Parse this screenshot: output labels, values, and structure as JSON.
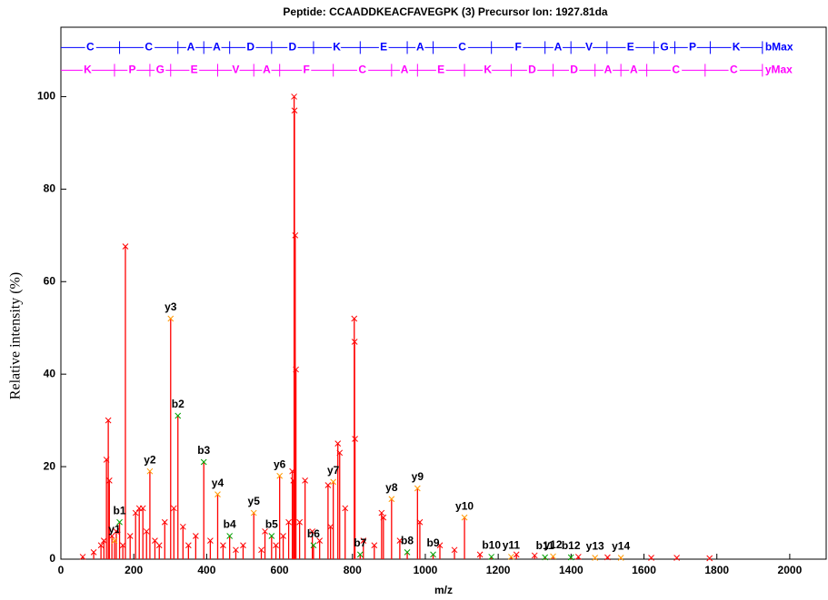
{
  "chart_data": {
    "type": "stem",
    "title": "Peptide: CCAADDKEACFAVEGPK (3)  Precursor Ion: 1927.81da",
    "x_label": "m/z",
    "y_label": "Relative intensity (%)",
    "xlim": [
      0,
      2100
    ],
    "ylim": [
      0,
      115
    ],
    "xticks": [
      0,
      200,
      400,
      600,
      800,
      1000,
      1200,
      1400,
      1600,
      1800,
      2000
    ],
    "yticks": [
      0,
      20,
      40,
      60,
      80,
      100
    ],
    "color": "#ff0000",
    "x": [
      60,
      90,
      110,
      118,
      125,
      130,
      133,
      140,
      152,
      170,
      177,
      190,
      205,
      215,
      225,
      235,
      258,
      270,
      285,
      310,
      335,
      350,
      370,
      410,
      445,
      480,
      500,
      550,
      560,
      590,
      610,
      625,
      635,
      638,
      640,
      641,
      643,
      645,
      655,
      670,
      690,
      710,
      733,
      740,
      760,
      765,
      780,
      805,
      806,
      807,
      830,
      860,
      880,
      885,
      930,
      985,
      1040,
      1080,
      1150,
      1250,
      1300,
      1420,
      1500,
      1620,
      1690,
      1780
    ],
    "values": [
      0.5,
      1.5,
      3,
      4,
      21.5,
      30,
      17,
      5,
      6,
      3,
      67.6,
      5,
      10,
      11,
      11,
      6,
      4,
      3,
      8,
      11,
      7,
      3,
      5,
      4,
      3,
      2,
      3,
      2,
      6,
      3,
      5,
      8,
      19,
      17,
      100,
      97,
      70,
      41,
      8,
      17,
      6,
      4,
      16,
      7,
      25,
      23,
      11,
      52,
      47,
      26,
      4,
      3,
      10,
      9,
      4,
      8,
      3,
      2,
      1,
      1,
      0.8,
      0.5,
      0.4,
      0.3,
      0.3,
      0.2
    ],
    "annotations": [
      {
        "label": "y1",
        "x": 147.1,
        "y": 4
      },
      {
        "label": "b1",
        "x": 161.0,
        "y": 8
      },
      {
        "label": "y2",
        "x": 244.2,
        "y": 19
      },
      {
        "label": "y3",
        "x": 301.2,
        "y": 52
      },
      {
        "label": "b2",
        "x": 321.1,
        "y": 31
      },
      {
        "label": "b3",
        "x": 392.1,
        "y": 21
      },
      {
        "label": "y4",
        "x": 430.2,
        "y": 14
      },
      {
        "label": "b4",
        "x": 463.1,
        "y": 5
      },
      {
        "label": "y5",
        "x": 529.3,
        "y": 10
      },
      {
        "label": "b5",
        "x": 578.2,
        "y": 5
      },
      {
        "label": "y6",
        "x": 600.3,
        "y": 18
      },
      {
        "label": "b6",
        "x": 693.2,
        "y": 3
      },
      {
        "label": "y7",
        "x": 747.4,
        "y": 16.7
      },
      {
        "label": "b7",
        "x": 821.3,
        "y": 1
      },
      {
        "label": "y8",
        "x": 907.4,
        "y": 13
      },
      {
        "label": "b8",
        "x": 950.4,
        "y": 1.5
      },
      {
        "label": "y9",
        "x": 978.5,
        "y": 15.3
      },
      {
        "label": "b9",
        "x": 1021.4,
        "y": 1
      },
      {
        "label": "y10",
        "x": 1107.5,
        "y": 9
      },
      {
        "label": "b10",
        "x": 1181.4,
        "y": 0.5
      },
      {
        "label": "y11",
        "x": 1235.6,
        "y": 0.5
      },
      {
        "label": "b11",
        "x": 1328.5,
        "y": 0.4
      },
      {
        "label": "y12",
        "x": 1350.6,
        "y": 0.6
      },
      {
        "label": "b12",
        "x": 1399.6,
        "y": 0.4
      },
      {
        "label": "y13",
        "x": 1465.7,
        "y": 0.3
      },
      {
        "label": "y14",
        "x": 1536.7,
        "y": 0.3
      }
    ],
    "ladders": [
      {
        "end_label": "bMax",
        "color": "#0000ff",
        "level": 110.6,
        "residues": [
          "C",
          "C",
          "A",
          "A",
          "D",
          "D",
          "K",
          "E",
          "A",
          "C",
          "F",
          "A",
          "V",
          "E",
          "G",
          "P",
          "K"
        ],
        "ticks": [
          161.0,
          321.1,
          392.1,
          463.1,
          578.2,
          693.2,
          821.3,
          950.4,
          1021.4,
          1181.4,
          1328.5,
          1399.6,
          1498.6,
          1627.7,
          1684.7,
          1781.8,
          1925
        ]
      },
      {
        "end_label": "yMax",
        "color": "#ff00ff",
        "level": 105.7,
        "residues": [
          "K",
          "P",
          "G",
          "E",
          "V",
          "A",
          "F",
          "C",
          "A",
          "E",
          "K",
          "D",
          "D",
          "A",
          "A",
          "C",
          "C"
        ],
        "ticks": [
          147.1,
          244.2,
          301.2,
          430.2,
          529.3,
          600.3,
          747.4,
          907.4,
          978.5,
          1107.5,
          1235.6,
          1350.6,
          1465.7,
          1536.7,
          1607.7,
          1767.8,
          1925
        ]
      }
    ]
  }
}
